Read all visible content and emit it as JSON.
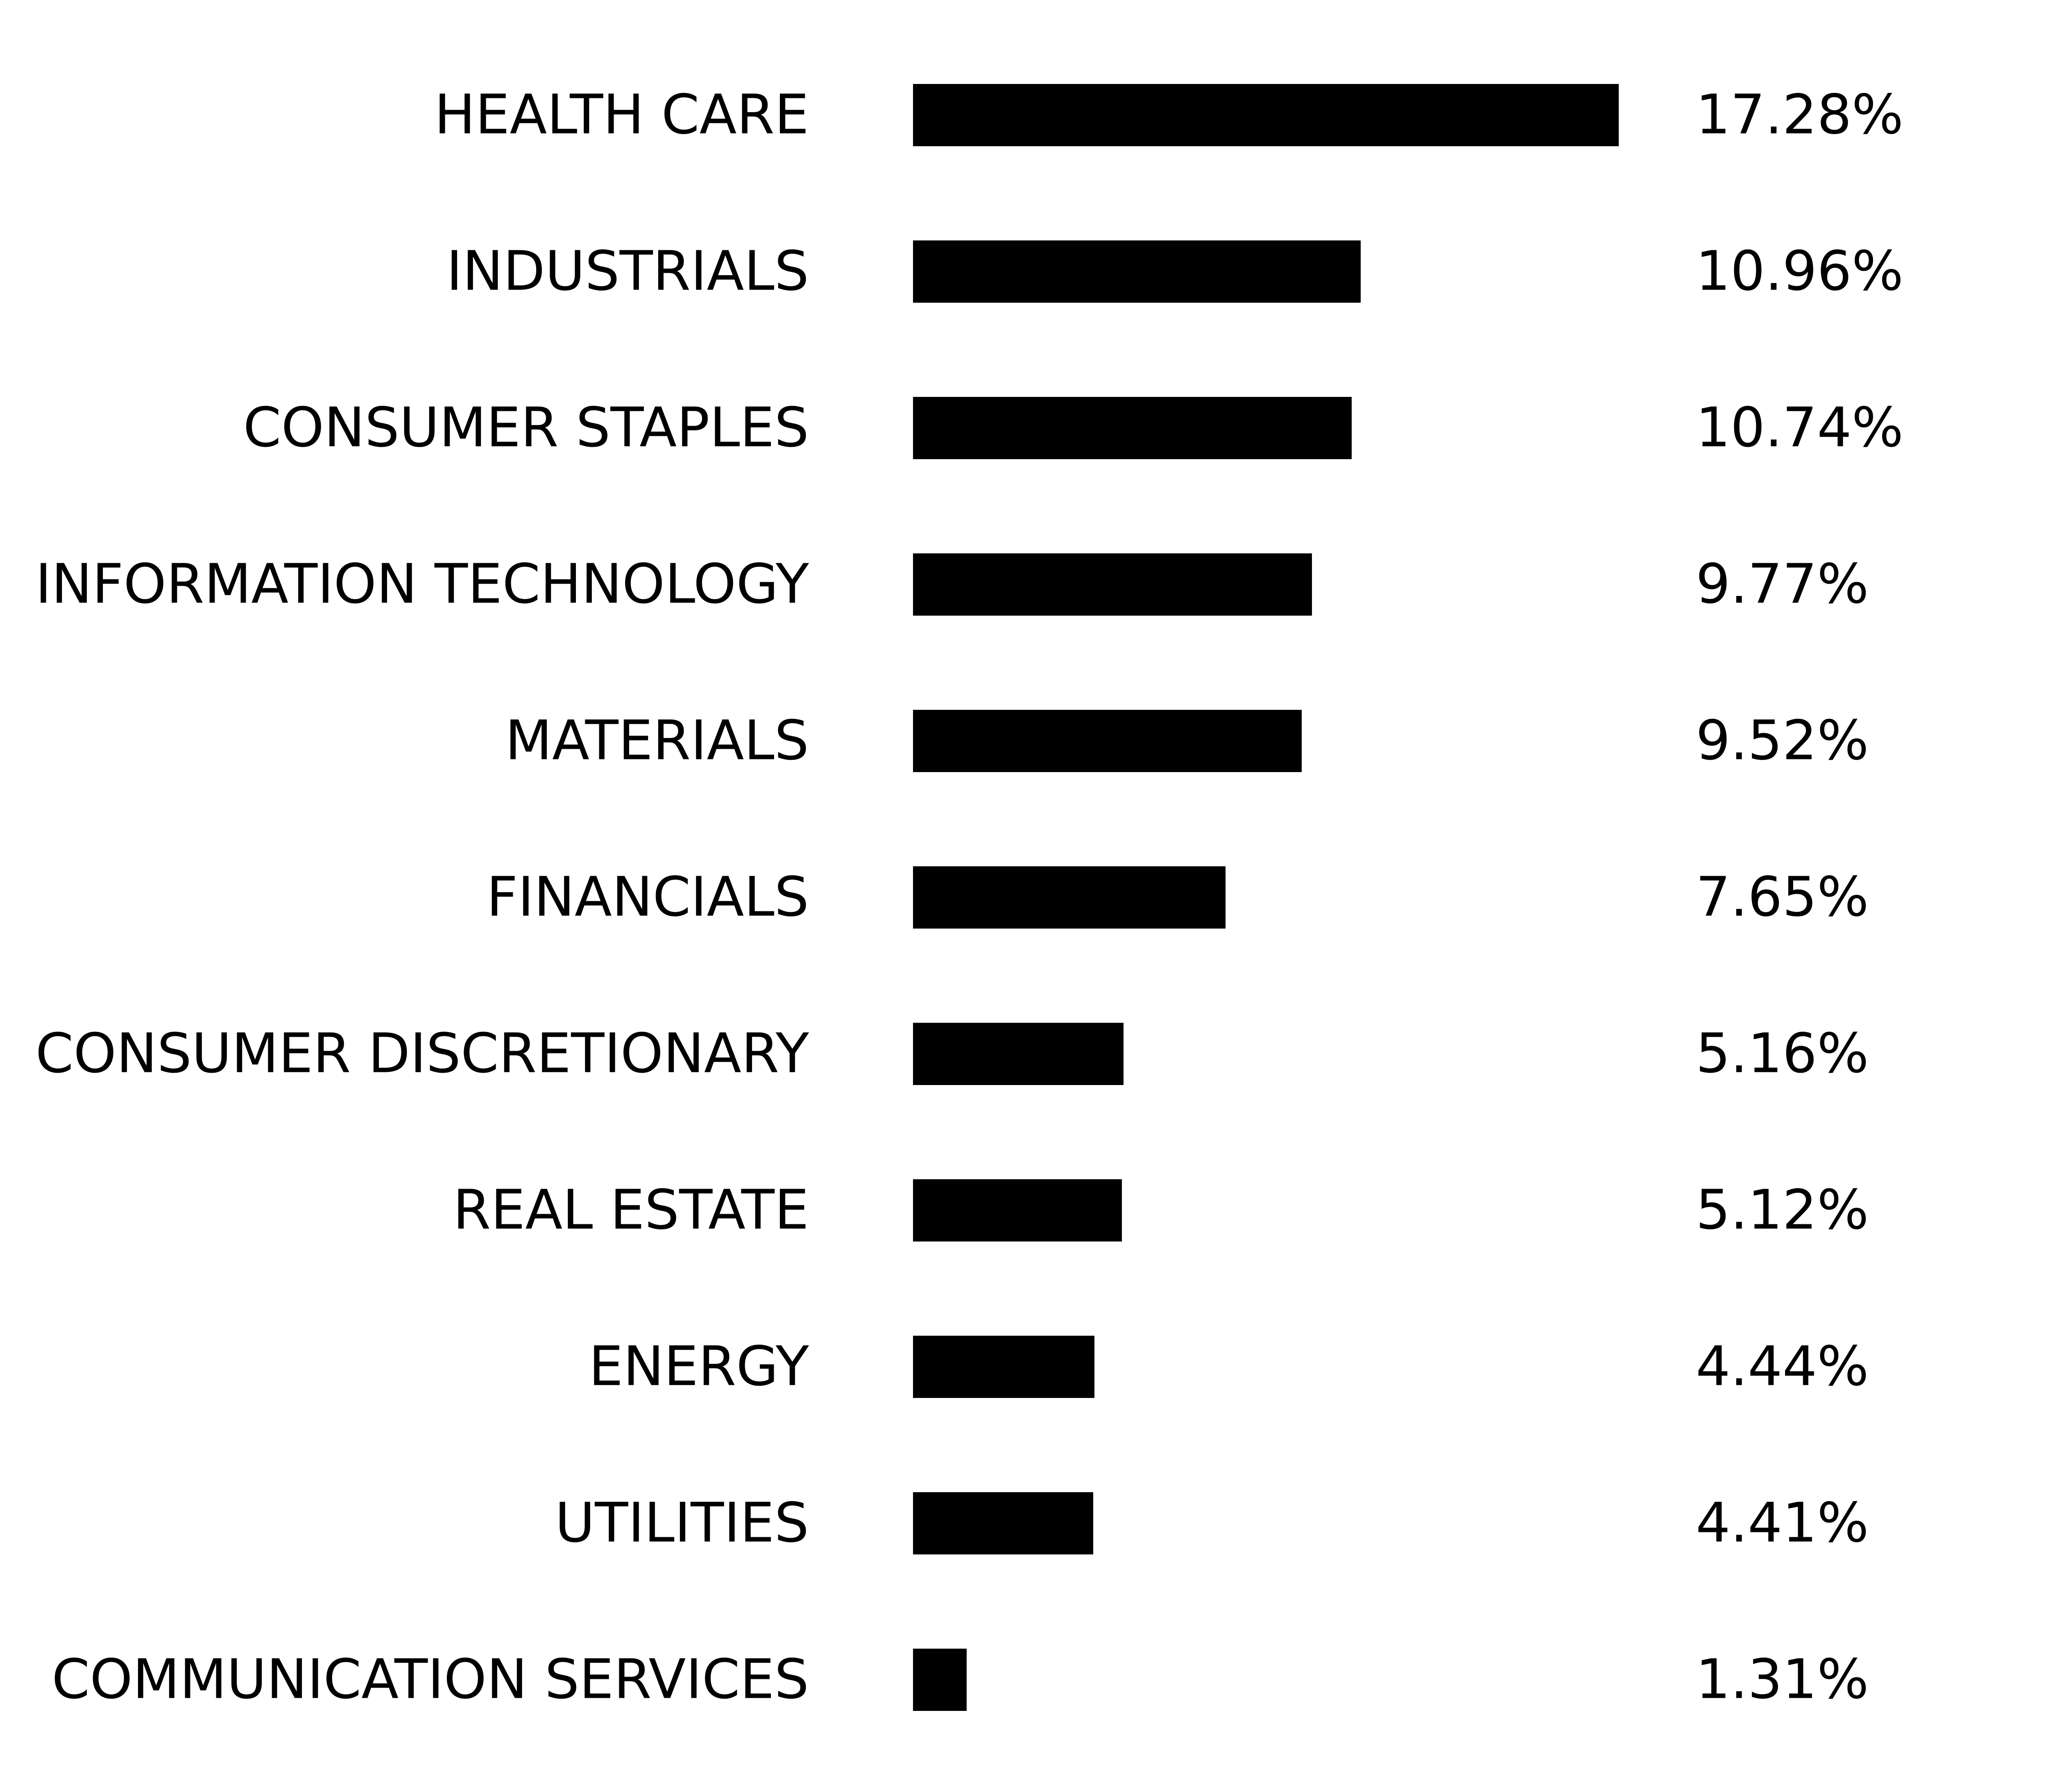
{
  "chart_data": {
    "type": "bar",
    "orientation": "horizontal",
    "categories": [
      "HEALTH CARE",
      "INDUSTRIALS",
      "CONSUMER STAPLES",
      "INFORMATION TECHNOLOGY",
      "MATERIALS",
      "FINANCIALS",
      "CONSUMER DISCRETIONARY",
      "REAL ESTATE",
      "ENERGY",
      "UTILITIES",
      "COMMUNICATION SERVICES"
    ],
    "values": [
      17.28,
      10.96,
      10.74,
      9.77,
      9.52,
      7.65,
      5.16,
      5.12,
      4.44,
      4.41,
      1.31
    ],
    "value_labels": [
      "17.28%",
      "10.96%",
      "10.74%",
      "9.77%",
      "9.52%",
      "7.65%",
      "5.16%",
      "5.12%",
      "4.44%",
      "4.41%",
      "1.31%"
    ],
    "bar_color": "#000000",
    "background_color": "#ffffff",
    "text_color": "#000000",
    "grid": false,
    "legend": false,
    "axes_visible": false
  }
}
